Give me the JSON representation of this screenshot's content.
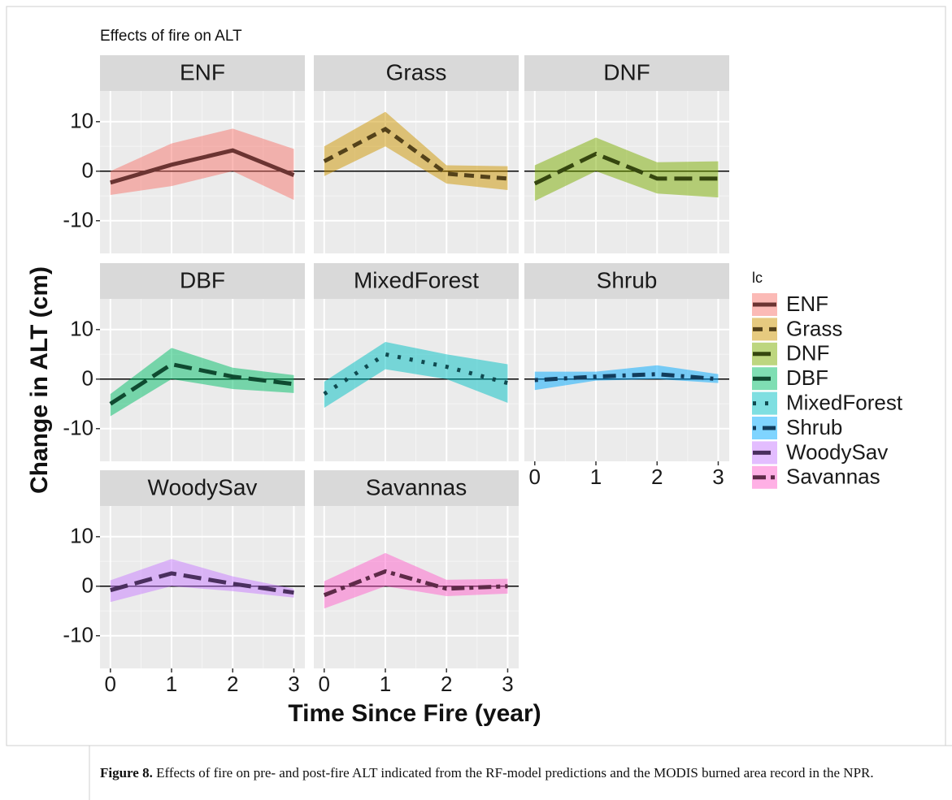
{
  "title": "Effects of fire on ALT",
  "ylabel": "Change in ALT (cm)",
  "xlabel": "Time Since Fire (year)",
  "legend_title": "lc",
  "caption": {
    "label": "Figure 8.",
    "text": "Effects of fire on pre- and post-fire ALT indicated from the RF-model predictions and the MODIS burned area record in the NPR."
  },
  "chart_data": [
    {
      "type": "line",
      "title": "ENF",
      "x": [
        0,
        1,
        2,
        3
      ],
      "xlim": [
        -0.17,
        3.18
      ],
      "ylim": [
        -16.6,
        16.2
      ],
      "xticks": [
        0,
        1,
        2,
        3
      ],
      "yticks": [
        -10,
        0,
        10
      ],
      "grid": true,
      "hline": 0,
      "series": [
        {
          "name": "ENF",
          "color": "#F8766D",
          "line_color": "#6b3432",
          "linestyle": "solid",
          "values": [
            -2.3,
            1.3,
            4.2,
            -0.8
          ],
          "lower": [
            -4.8,
            -3,
            0,
            -5.8
          ],
          "upper": [
            0,
            5.6,
            8.6,
            4.5
          ]
        }
      ]
    },
    {
      "type": "line",
      "title": "Grass",
      "x": [
        0,
        1,
        2,
        3
      ],
      "xlim": [
        -0.17,
        3.18
      ],
      "ylim": [
        -16.6,
        16.2
      ],
      "xticks": [
        0,
        1,
        2,
        3
      ],
      "yticks": [
        -10,
        0,
        10
      ],
      "grid": true,
      "hline": 0,
      "series": [
        {
          "name": "Grass",
          "color": "#CD9600",
          "line_color": "#54421a",
          "linestyle": "dashed",
          "values": [
            2,
            8.5,
            -0.5,
            -1.5
          ],
          "lower": [
            -1,
            5,
            -2.5,
            -3.8
          ],
          "upper": [
            5,
            12,
            1.2,
            1
          ]
        }
      ]
    },
    {
      "type": "line",
      "title": "DNF",
      "x": [
        0,
        1,
        2,
        3
      ],
      "xlim": [
        -0.17,
        3.18
      ],
      "ylim": [
        -16.6,
        16.2
      ],
      "xticks": [
        0,
        1,
        2,
        3
      ],
      "yticks": [
        -10,
        0,
        10
      ],
      "grid": true,
      "hline": 0,
      "series": [
        {
          "name": "DNF",
          "color": "#7CAE00",
          "line_color": "#35460f",
          "linestyle": "longdash",
          "values": [
            -2.5,
            3.5,
            -1.5,
            -1.5
          ],
          "lower": [
            -6,
            0,
            -4.5,
            -5.3
          ],
          "upper": [
            1.2,
            6.8,
            1.8,
            2
          ]
        }
      ]
    },
    {
      "type": "line",
      "title": "DBF",
      "x": [
        0,
        1,
        2,
        3
      ],
      "xlim": [
        -0.17,
        3.18
      ],
      "ylim": [
        -16.6,
        16.2
      ],
      "xticks": [
        0,
        1,
        2,
        3
      ],
      "yticks": [
        -10,
        0,
        10
      ],
      "grid": true,
      "hline": 0,
      "series": [
        {
          "name": "DBF",
          "color": "#00BE67",
          "line_color": "#0f4a30",
          "linestyle": "longdash",
          "values": [
            -5,
            3,
            0.5,
            -1
          ],
          "lower": [
            -7.5,
            0,
            -2,
            -2.8
          ],
          "upper": [
            -3,
            6.3,
            2.3,
            0.8
          ]
        }
      ]
    },
    {
      "type": "line",
      "title": "MixedForest",
      "x": [
        0,
        1,
        2,
        3
      ],
      "xlim": [
        -0.17,
        3.18
      ],
      "ylim": [
        -16.6,
        16.2
      ],
      "xticks": [
        0,
        1,
        2,
        3
      ],
      "yticks": [
        -10,
        0,
        10
      ],
      "grid": true,
      "hline": 0,
      "series": [
        {
          "name": "MixedForest",
          "color": "#00BFC4",
          "line_color": "#104a50",
          "linestyle": "dotted",
          "values": [
            -3,
            5,
            2.5,
            -0.8
          ],
          "lower": [
            -5.8,
            2,
            0,
            -4.8
          ],
          "upper": [
            -0.5,
            7.5,
            5,
            3
          ]
        }
      ]
    },
    {
      "type": "line",
      "title": "Shrub",
      "x": [
        0,
        1,
        2,
        3
      ],
      "xlim": [
        -0.17,
        3.18
      ],
      "ylim": [
        -16.6,
        16.2
      ],
      "xticks": [
        0,
        1,
        2,
        3
      ],
      "yticks": [
        -10,
        0,
        10
      ],
      "grid": true,
      "hline": 0,
      "series": [
        {
          "name": "Shrub",
          "color": "#00A9FF",
          "line_color": "#123c5c",
          "linestyle": "dotdash",
          "values": [
            -0.2,
            0.5,
            1,
            0
          ],
          "lower": [
            -2.2,
            -0.3,
            0,
            -0.8
          ],
          "upper": [
            1.5,
            1.5,
            2.8,
            1
          ]
        }
      ]
    },
    {
      "type": "line",
      "title": "WoodySav",
      "x": [
        0,
        1,
        2,
        3
      ],
      "xlim": [
        -0.17,
        3.18
      ],
      "ylim": [
        -16.6,
        16.2
      ],
      "xticks": [
        0,
        1,
        2,
        3
      ],
      "yticks": [
        -10,
        0,
        10
      ],
      "grid": true,
      "hline": 0,
      "series": [
        {
          "name": "WoodySav",
          "color": "#C77CFF",
          "line_color": "#4a2f5e",
          "linestyle": "longdash",
          "values": [
            -0.8,
            2.6,
            0.5,
            -1.3
          ],
          "lower": [
            -3.2,
            0,
            -1,
            -2.3
          ],
          "upper": [
            1.2,
            5.5,
            2,
            -0.5
          ]
        }
      ]
    },
    {
      "type": "line",
      "title": "Savannas",
      "x": [
        0,
        1,
        2,
        3
      ],
      "xlim": [
        -0.17,
        3.18
      ],
      "ylim": [
        -16.6,
        16.2
      ],
      "xticks": [
        0,
        1,
        2,
        3
      ],
      "yticks": [
        -10,
        0,
        10
      ],
      "grid": true,
      "hline": 0,
      "series": [
        {
          "name": "Savannas",
          "color": "#FF61CC",
          "line_color": "#5e2a48",
          "linestyle": "twodash",
          "values": [
            -1.8,
            3,
            -0.5,
            0
          ],
          "lower": [
            -4.5,
            0,
            -2,
            -1.5
          ],
          "upper": [
            1,
            6.7,
            1.3,
            1.5
          ]
        }
      ]
    }
  ]
}
